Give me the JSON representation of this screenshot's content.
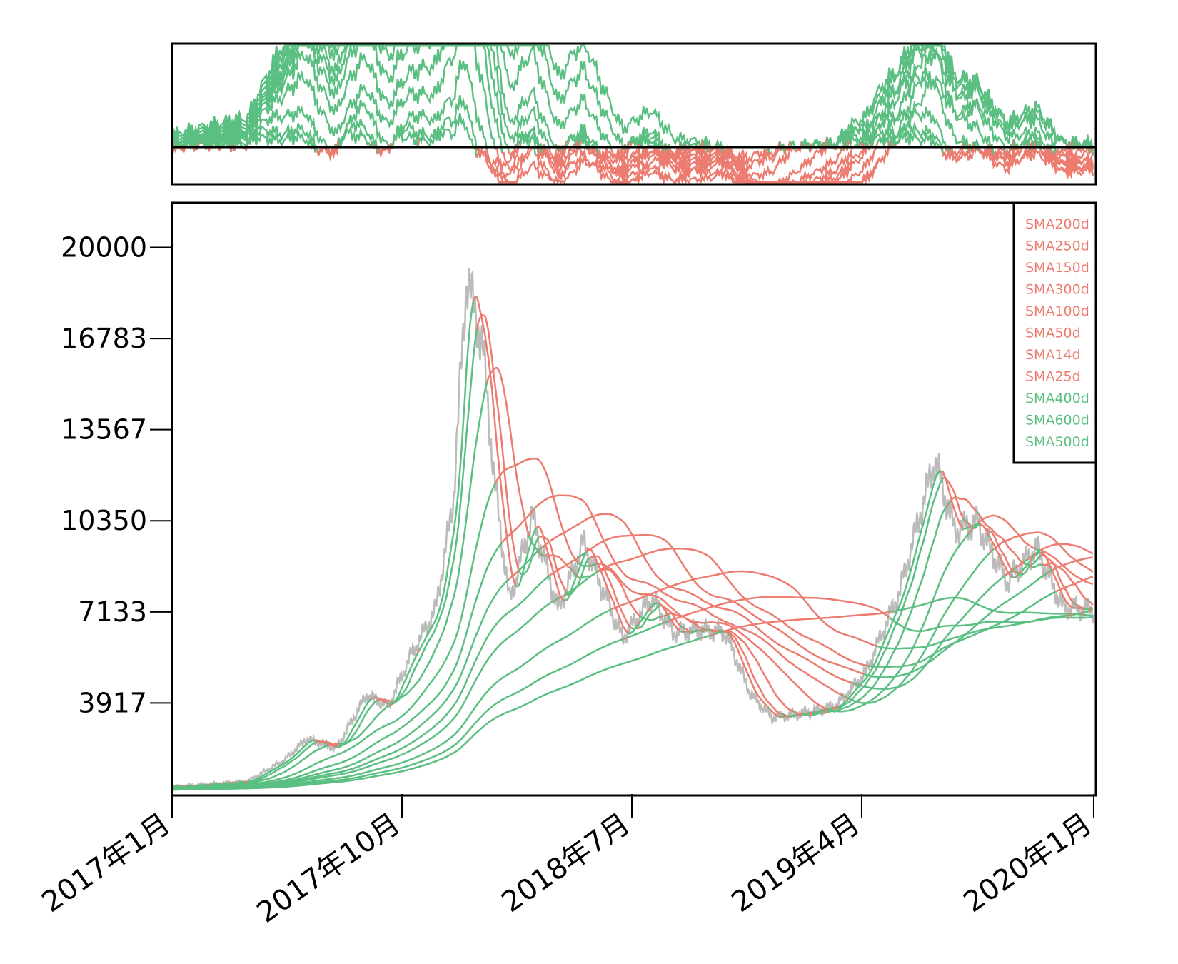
{
  "chart_data": [
    {
      "type": "line",
      "panel": "sma-deviation",
      "title": "",
      "xlabel": "",
      "ylabel": "",
      "grid": false,
      "note_values": "deviation of price from each SMA; positive green, negative red; no y tick labels printed",
      "x": [
        "2017-01",
        "2017-04",
        "2017-07",
        "2017-09",
        "2017-11",
        "2017-12",
        "2018-01",
        "2018-02",
        "2018-03",
        "2018-05",
        "2018-07",
        "2018-09",
        "2018-11",
        "2018-12",
        "2019-02",
        "2019-04",
        "2019-06",
        "2019-07",
        "2019-09",
        "2019-11",
        "2019-12"
      ],
      "series": [
        {
          "values": [
            0.02,
            0.03,
            0.05,
            0.12,
            0.3,
            0.85,
            0.05,
            -0.15,
            0.1,
            0.0,
            -0.02,
            -0.01,
            -0.15,
            -0.25,
            -0.1,
            0.1,
            0.3,
            0.2,
            0.05,
            -0.05,
            -0.05
          ]
        }
      ]
    },
    {
      "type": "line",
      "panel": "price",
      "title": "",
      "xlabel": "",
      "ylabel": "",
      "grid": false,
      "legend_position": "top-right",
      "yticks": [
        "20000",
        "16783",
        "13567",
        "10350",
        "7133",
        "3917"
      ],
      "xticks": [
        "2017年1月",
        "2017年10月",
        "2018年7月",
        "2019年4月",
        "2020年1月"
      ],
      "ylim": [
        700,
        21500
      ],
      "colors": {
        "price": "#bbbbbb",
        "above": "#5bbf82",
        "below": "#ec7b70"
      },
      "price": {
        "x": [
          "2017-01-01",
          "2017-02-15",
          "2017-04-01",
          "2017-05-15",
          "2017-06-10",
          "2017-07-15",
          "2017-08-20",
          "2017-09-15",
          "2017-10-10",
          "2017-11-10",
          "2017-12-01",
          "2017-12-17",
          "2018-01-05",
          "2018-01-20",
          "2018-02-06",
          "2018-03-05",
          "2018-04-05",
          "2018-05-05",
          "2018-06-20",
          "2018-07-25",
          "2018-08-20",
          "2018-09-20",
          "2018-10-20",
          "2018-11-20",
          "2018-12-15",
          "2019-01-20",
          "2019-03-01",
          "2019-04-05",
          "2019-05-15",
          "2019-06-26",
          "2019-07-20",
          "2019-08-15",
          "2019-09-20",
          "2019-10-25",
          "2019-11-25",
          "2019-12-31"
        ],
        "values": [
          950,
          1050,
          1150,
          1900,
          2650,
          2300,
          4200,
          3800,
          5500,
          7200,
          11000,
          19000,
          16500,
          11500,
          7500,
          10500,
          7200,
          9600,
          6200,
          7600,
          6400,
          6500,
          6400,
          4200,
          3400,
          3550,
          3800,
          5000,
          7800,
          12500,
          10000,
          10300,
          8200,
          9400,
          7300,
          7200
        ]
      },
      "series": [
        {
          "name": "SMA200d",
          "values": []
        },
        {
          "name": "SMA250d",
          "values": []
        },
        {
          "name": "SMA150d",
          "values": []
        },
        {
          "name": "SMA300d",
          "values": []
        },
        {
          "name": "SMA100d",
          "values": []
        },
        {
          "name": "SMA50d",
          "values": []
        },
        {
          "name": "SMA14d",
          "values": []
        },
        {
          "name": "SMA25d",
          "values": []
        },
        {
          "name": "SMA400d",
          "values": []
        },
        {
          "name": "SMA600d",
          "values": []
        },
        {
          "name": "SMA500d",
          "values": []
        }
      ],
      "legend": [
        {
          "label": "SMA200d",
          "color": "#ec7b70"
        },
        {
          "label": "SMA250d",
          "color": "#ec7b70"
        },
        {
          "label": "SMA150d",
          "color": "#ec7b70"
        },
        {
          "label": "SMA300d",
          "color": "#ec7b70"
        },
        {
          "label": "SMA100d",
          "color": "#ec7b70"
        },
        {
          "label": "SMA50d",
          "color": "#ec7b70"
        },
        {
          "label": "SMA14d",
          "color": "#ec7b70"
        },
        {
          "label": "SMA25d",
          "color": "#ec7b70"
        },
        {
          "label": "SMA400d",
          "color": "#5bbf82"
        },
        {
          "label": "SMA600d",
          "color": "#5bbf82"
        },
        {
          "label": "SMA500d",
          "color": "#5bbf82"
        }
      ]
    }
  ]
}
